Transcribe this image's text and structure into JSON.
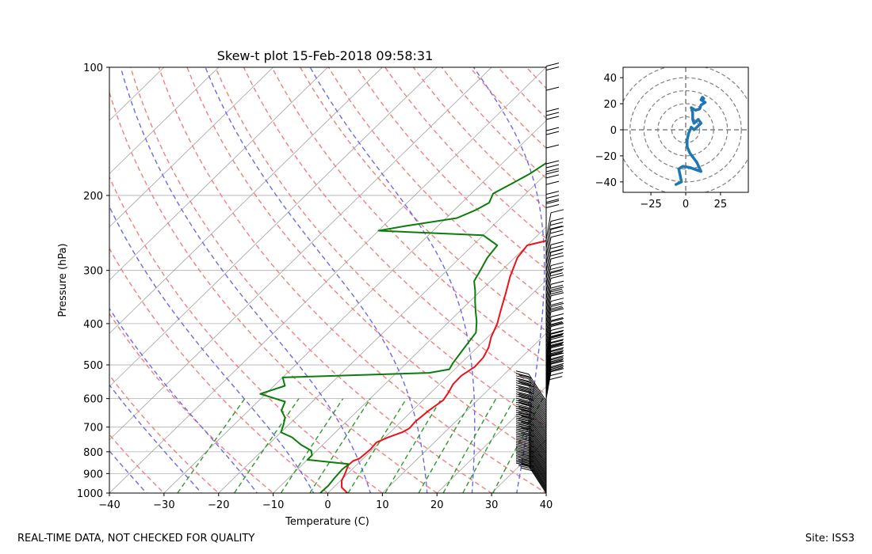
{
  "chart_data": [
    {
      "type": "line",
      "subtype": "skew-t log-p",
      "title": "Skew-t plot 15-Feb-2018 09:58:31",
      "xlabel": "Temperature (C)",
      "ylabel": "Pressure (hPa)",
      "xlim": [
        -40,
        40
      ],
      "ylim": [
        1000,
        100
      ],
      "y_scale": "log",
      "x_ticks": [
        -40,
        -30,
        -20,
        -10,
        0,
        10,
        20,
        30,
        40
      ],
      "x_tick_labels": [
        "−40",
        "−30",
        "−20",
        "−10",
        "0",
        "10",
        "20",
        "30",
        "40"
      ],
      "y_ticks": [
        1000,
        900,
        800,
        700,
        600,
        500,
        400,
        300,
        200,
        100
      ],
      "y_tick_labels": [
        "1000",
        "900",
        "800",
        "700",
        "600",
        "500",
        "400",
        "300",
        "200",
        "100"
      ],
      "grid": true,
      "background_lines": {
        "isotherms_color": "#a0a0a0",
        "dry_adiabats_color": "#f08080",
        "moist_adiabats_color": "#6b6bea",
        "mixing_ratio_color": "#2e9a2e"
      },
      "series": [
        {
          "color": "#e8141b",
          "points": [
            [
              3.6,
              1000
            ],
            [
              1.5,
              970
            ],
            [
              0.2,
              935
            ],
            [
              -0.5,
              900
            ],
            [
              -1.5,
              860
            ],
            [
              -1.4,
              840
            ],
            [
              -0.7,
              830
            ],
            [
              -0.4,
              790
            ],
            [
              -0.6,
              760
            ],
            [
              0.6,
              740
            ],
            [
              2.2,
              720
            ],
            [
              2.8,
              705
            ],
            [
              2.6,
              680
            ],
            [
              3.0,
              640
            ],
            [
              3.7,
              605
            ],
            [
              3.2,
              580
            ],
            [
              2.5,
              555
            ],
            [
              2.4,
              530
            ],
            [
              3.2,
              505
            ],
            [
              3.0,
              480
            ],
            [
              2.1,
              455
            ],
            [
              0.6,
              430
            ],
            [
              -0.8,
              400
            ],
            [
              -2.8,
              370
            ],
            [
              -4.9,
              340
            ],
            [
              -7.3,
              310
            ],
            [
              -9.5,
              280
            ],
            [
              -10,
              262
            ],
            [
              -6,
              252
            ],
            [
              1,
              245
            ],
            [
              2,
              236
            ],
            [
              3.5,
              228
            ],
            [
              6.0,
              218
            ],
            [
              10,
              206
            ],
            [
              12,
              195
            ],
            [
              14.5,
              182
            ],
            [
              16.8,
              170
            ],
            [
              18.5,
              158
            ],
            [
              20.5,
              146
            ],
            [
              22.2,
              134
            ],
            [
              24,
              122
            ],
            [
              25,
              112
            ],
            [
              27,
              104
            ],
            [
              29,
              100
            ]
          ]
        },
        {
          "color": "#0a7d0a",
          "points": [
            [
              -1.4,
              1000
            ],
            [
              -1.3,
              960
            ],
            [
              -1.6,
              920
            ],
            [
              -1.8,
              880
            ],
            [
              -1.6,
              855
            ],
            [
              -10,
              835
            ],
            [
              -10,
              815
            ],
            [
              -11,
              795
            ],
            [
              -14,
              770
            ],
            [
              -17,
              740
            ],
            [
              -20,
              720
            ],
            [
              -21,
              690
            ],
            [
              -22,
              665
            ],
            [
              -24,
              640
            ],
            [
              -25,
              610
            ],
            [
              -31,
              585
            ],
            [
              -28,
              560
            ],
            [
              -30,
              535
            ],
            [
              -4,
              522
            ],
            [
              -1,
              512
            ],
            [
              -1.5,
              495
            ],
            [
              -2,
              470
            ],
            [
              -2.5,
              445
            ],
            [
              -3,
              420
            ],
            [
              -5,
              395
            ],
            [
              -7,
              375
            ],
            [
              -9,
              355
            ],
            [
              -11,
              335
            ],
            [
              -13,
              318
            ],
            [
              -14,
              298
            ],
            [
              -15,
              280
            ],
            [
              -15.5,
              262
            ],
            [
              -20,
              248
            ],
            [
              -40,
              242
            ],
            [
              -36,
              236
            ],
            [
              -28,
              226
            ],
            [
              -26,
              216
            ],
            [
              -25,
              208
            ],
            [
              -26,
              198
            ],
            [
              -24.5,
              188
            ],
            [
              -23,
              178
            ],
            [
              -22,
              168
            ],
            [
              -20.5,
              156
            ],
            [
              -19.5,
              146
            ],
            [
              -18.5,
              138
            ],
            [
              -17.5,
              126
            ],
            [
              -16,
              116
            ],
            [
              -15,
              106
            ],
            [
              -14,
              100
            ]
          ]
        }
      ],
      "wind_barbs": "present at right edge, 100–1000 hPa"
    },
    {
      "type": "line",
      "subtype": "hodograph",
      "xlim": [
        -45,
        45
      ],
      "ylim": [
        -48,
        48
      ],
      "x_ticks": [
        -25,
        0,
        25
      ],
      "x_tick_labels": [
        "−25",
        "0",
        "25"
      ],
      "y_ticks": [
        -40,
        -20,
        0,
        20,
        40
      ],
      "y_tick_labels": [
        "−40",
        "−20",
        "0",
        "20",
        "40"
      ],
      "rings": [
        10,
        20,
        30,
        40,
        50
      ],
      "series": [
        {
          "color": "#1f77b4",
          "points": [
            [
              -7,
              -42
            ],
            [
              -3,
              -40
            ],
            [
              -4,
              -35
            ],
            [
              -5,
              -30
            ],
            [
              -2,
              -28
            ],
            [
              3,
              -29
            ],
            [
              11,
              -32
            ],
            [
              8,
              -25
            ],
            [
              3,
              -18
            ],
            [
              1,
              -13
            ],
            [
              1,
              -8
            ],
            [
              2,
              -3
            ],
            [
              4,
              2
            ],
            [
              6,
              0
            ],
            [
              9,
              3
            ],
            [
              11,
              5
            ],
            [
              9,
              8
            ],
            [
              6,
              5
            ],
            [
              5,
              8
            ],
            [
              5,
              13
            ],
            [
              4,
              17
            ],
            [
              7,
              15
            ],
            [
              10,
              16
            ],
            [
              11,
              19
            ],
            [
              14,
              21
            ],
            [
              11,
              23
            ],
            [
              12,
              25
            ],
            [
              13,
              24
            ]
          ]
        }
      ]
    }
  ],
  "footer": {
    "left": "REAL-TIME DATA, NOT CHECKED FOR QUALITY",
    "right": "Site: ISS3"
  }
}
